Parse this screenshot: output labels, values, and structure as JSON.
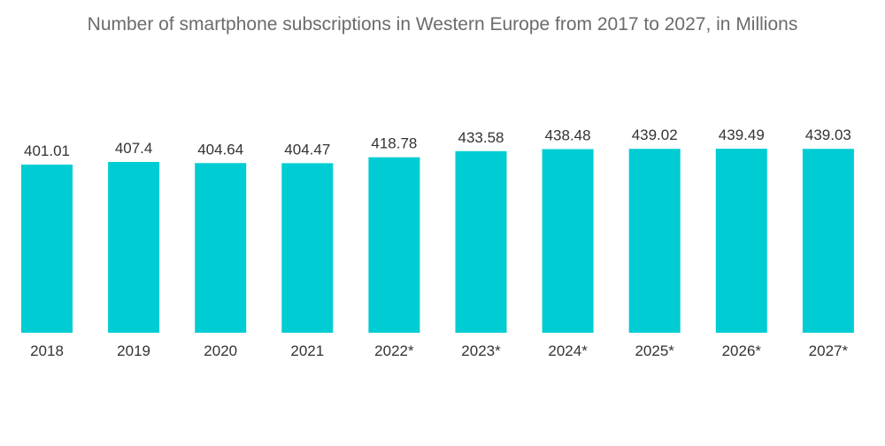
{
  "chart_data": {
    "type": "bar",
    "title": "Number of smartphone subscriptions in Western Europe from 2017 to 2027, in Millions",
    "categories": [
      "2018",
      "2019",
      "2020",
      "2021",
      "2022*",
      "2023*",
      "2024*",
      "2025*",
      "2026*",
      "2027*"
    ],
    "values": [
      401.01,
      407.4,
      404.64,
      404.47,
      418.78,
      433.58,
      438.48,
      439.02,
      439.49,
      439.03
    ],
    "value_labels": [
      "401.01",
      "407.4",
      "404.64",
      "404.47",
      "418.78",
      "433.58",
      "438.48",
      "439.02",
      "439.49",
      "439.03"
    ],
    "bar_color": "#00ccd3",
    "grid": false,
    "legend": "none"
  }
}
